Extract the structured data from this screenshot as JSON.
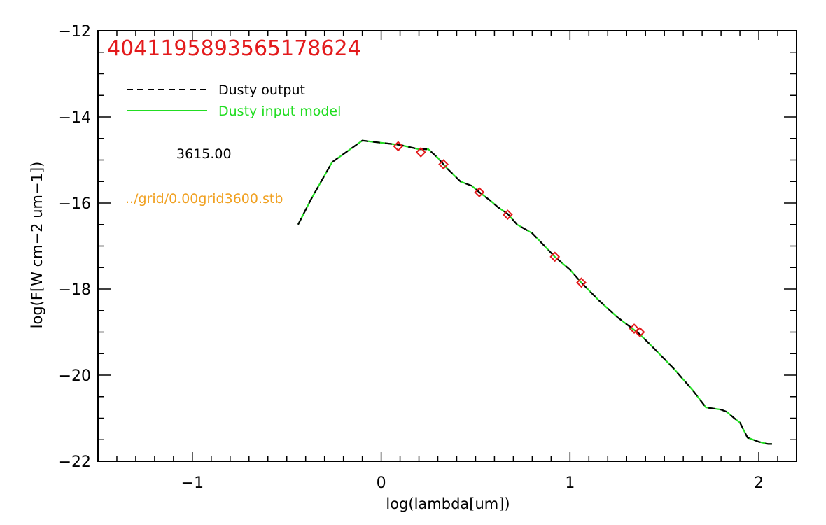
{
  "chart_data": {
    "type": "line",
    "title": "404119589356517862​4",
    "xlabel": "log(lambda[um])",
    "ylabel": "log(F[W cm−2 um−1])",
    "xlim": [
      -1.5,
      2.2
    ],
    "ylim": [
      -22,
      -12
    ],
    "x_ticks": [
      -1,
      0,
      1,
      2
    ],
    "x_tick_labels": [
      "−1",
      "0",
      "1",
      "2"
    ],
    "y_ticks": [
      -22,
      -20,
      -18,
      -16,
      -14,
      -12
    ],
    "y_tick_labels": [
      "−22",
      "−20",
      "−18",
      "−16",
      "−14",
      "−12"
    ],
    "grid": false,
    "legend_position": "top-left",
    "colors": {
      "title": "#e31a1c",
      "output": "#000000",
      "input": "#22dd22",
      "points": "#e31a1c",
      "annotation": "#000000",
      "grid_file": "#f0a020"
    },
    "series": [
      {
        "name": "Dusty output",
        "style": "dashed",
        "x": [
          -0.44,
          -0.37,
          -0.26,
          -0.1,
          0.0,
          0.1,
          0.2,
          0.25,
          0.3,
          0.35,
          0.42,
          0.48,
          0.52,
          0.58,
          0.62,
          0.67,
          0.72,
          0.8,
          0.92,
          1.0,
          1.06,
          1.15,
          1.25,
          1.34,
          1.37,
          1.45,
          1.55,
          1.65,
          1.72,
          1.8,
          1.83,
          1.87,
          1.9,
          1.94,
          2.0,
          2.05,
          2.07
        ],
        "y": [
          -16.5,
          -15.9,
          -15.05,
          -14.55,
          -14.6,
          -14.65,
          -14.75,
          -14.75,
          -14.95,
          -15.2,
          -15.5,
          -15.6,
          -15.75,
          -15.95,
          -16.1,
          -16.25,
          -16.5,
          -16.7,
          -17.25,
          -17.55,
          -17.85,
          -18.25,
          -18.65,
          -18.95,
          -19.05,
          -19.4,
          -19.85,
          -20.35,
          -20.75,
          -20.8,
          -20.85,
          -21.0,
          -21.1,
          -21.45,
          -21.55,
          -21.6,
          -21.6
        ]
      },
      {
        "name": "Dusty input model",
        "style": "solid",
        "x": [
          -0.44,
          -0.37,
          -0.26,
          -0.1,
          0.0,
          0.1,
          0.2,
          0.25,
          0.3,
          0.35,
          0.42,
          0.48,
          0.52,
          0.58,
          0.62,
          0.67,
          0.72,
          0.8,
          0.92,
          1.0,
          1.06,
          1.15,
          1.25,
          1.34,
          1.37,
          1.45,
          1.55,
          1.65,
          1.72,
          1.8,
          1.83,
          1.87,
          1.9,
          1.94,
          2.0,
          2.05,
          2.07
        ],
        "y": [
          -16.5,
          -15.9,
          -15.05,
          -14.55,
          -14.6,
          -14.65,
          -14.75,
          -14.75,
          -14.95,
          -15.2,
          -15.5,
          -15.6,
          -15.75,
          -15.95,
          -16.1,
          -16.25,
          -16.5,
          -16.7,
          -17.25,
          -17.55,
          -17.85,
          -18.25,
          -18.65,
          -18.95,
          -19.05,
          -19.4,
          -19.85,
          -20.35,
          -20.75,
          -20.8,
          -20.85,
          -21.0,
          -21.1,
          -21.45,
          -21.55,
          -21.6,
          -21.6
        ]
      }
    ],
    "points": {
      "marker": "diamond",
      "x": [
        0.09,
        0.21,
        0.33,
        0.52,
        0.67,
        0.92,
        1.06,
        1.34,
        1.37
      ],
      "y": [
        -14.68,
        -14.82,
        -15.1,
        -15.75,
        -16.27,
        -17.25,
        -17.85,
        -18.92,
        -19.0
      ]
    },
    "annotations": {
      "temperature": "3615.00",
      "grid_file": "../grid/0.00grid3600.stb"
    }
  }
}
